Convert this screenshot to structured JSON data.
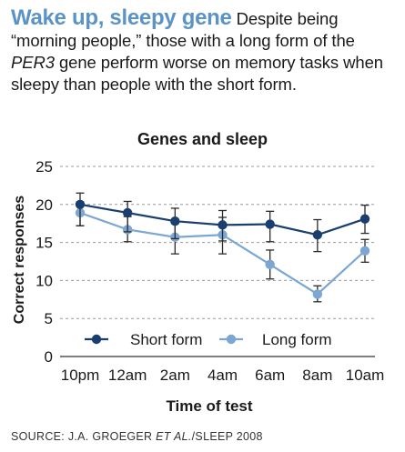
{
  "header": {
    "headline": "Wake up, sleepy gene",
    "dek_1": " Despite being “morning people,” those with a long form of the ",
    "dek_gene": "PER3",
    "dek_2": " gene perform worse on memory tasks when sleepy than people with the short form."
  },
  "source": {
    "prefix": "SOURCE: J.A. GROEGER ",
    "etal": "ET AL.",
    "suffix": "/SLEEP 2008"
  },
  "colors": {
    "short": "#1a3f6e",
    "long": "#7ba7d2",
    "grid": "#9a9a9a"
  },
  "chart_data": {
    "type": "line",
    "title": "Genes and sleep",
    "xlabel": "Time of test",
    "ylabel": "Correct responses",
    "categories": [
      "10pm",
      "12am",
      "2am",
      "4am",
      "6am",
      "8am",
      "10am"
    ],
    "ylim": [
      0,
      25
    ],
    "yticks": [
      0,
      5,
      10,
      15,
      20,
      25
    ],
    "grid": true,
    "legend": "bottom-center",
    "series": [
      {
        "name": "Short form",
        "values": [
          20.0,
          18.9,
          17.8,
          17.3,
          17.4,
          16.0,
          18.1
        ],
        "error_low": [
          17.2,
          16.4,
          15.5,
          15.2,
          15.1,
          13.8,
          16.2
        ],
        "error_high": [
          21.5,
          20.4,
          19.5,
          19.2,
          19.1,
          18.0,
          19.9
        ]
      },
      {
        "name": "Long form",
        "values": [
          18.9,
          16.7,
          15.7,
          16.0,
          12.1,
          8.2,
          13.9
        ],
        "error_low": [
          17.2,
          15.1,
          13.5,
          13.5,
          10.2,
          7.2,
          12.4
        ],
        "error_high": [
          20.3,
          18.4,
          17.5,
          18.3,
          14.0,
          9.3,
          15.4
        ]
      }
    ]
  }
}
